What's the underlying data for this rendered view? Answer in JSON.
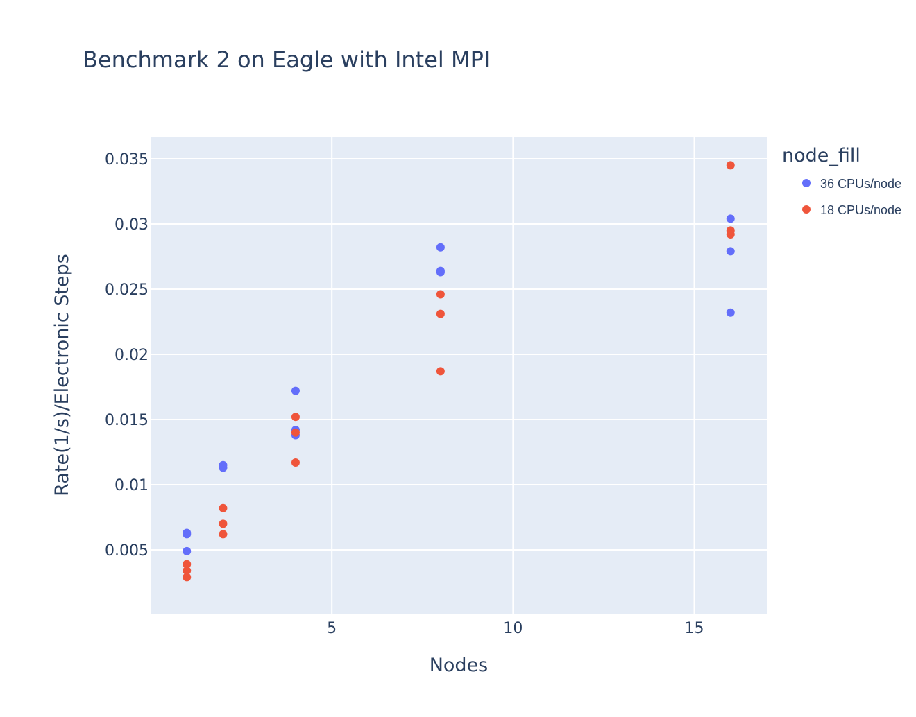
{
  "chart_data": {
    "type": "scatter",
    "title": "Benchmark 2 on Eagle with Intel MPI",
    "xlabel": "Nodes",
    "ylabel": "Rate(1/s)/Electronic Steps",
    "xlim": [
      0,
      17
    ],
    "ylim": [
      5e-05,
      0.0367
    ],
    "x_ticks": [
      5,
      10,
      15
    ],
    "y_ticks": [
      0.005,
      0.01,
      0.015,
      0.02,
      0.025,
      0.03,
      0.035
    ],
    "x_tick_labels": [
      "5",
      "10",
      "15"
    ],
    "y_tick_labels": [
      "0.005",
      "0.01",
      "0.015",
      "0.02",
      "0.025",
      "0.03",
      "0.035"
    ],
    "grid": true,
    "plot_background": "#e5ecf6",
    "legend": {
      "title": "node_fill",
      "placement": "right"
    },
    "series": [
      {
        "name": "36 CPUs/node",
        "color": "#636efa",
        "x": [
          1,
          1,
          1,
          2,
          2,
          4,
          4,
          4,
          8,
          8,
          8,
          16,
          16,
          16
        ],
        "y": [
          0.0063,
          0.0062,
          0.0049,
          0.0115,
          0.0113,
          0.0172,
          0.0142,
          0.0138,
          0.0282,
          0.0264,
          0.0263,
          0.0304,
          0.0279,
          0.0232
        ]
      },
      {
        "name": "18 CPUs/node",
        "color": "#ef553b",
        "x": [
          1,
          1,
          1,
          2,
          2,
          2,
          4,
          4,
          4,
          8,
          8,
          8,
          16,
          16,
          16
        ],
        "y": [
          0.0039,
          0.0034,
          0.0029,
          0.0082,
          0.007,
          0.0062,
          0.0152,
          0.014,
          0.0117,
          0.0246,
          0.0231,
          0.0187,
          0.0345,
          0.0295,
          0.0292
        ]
      }
    ]
  }
}
